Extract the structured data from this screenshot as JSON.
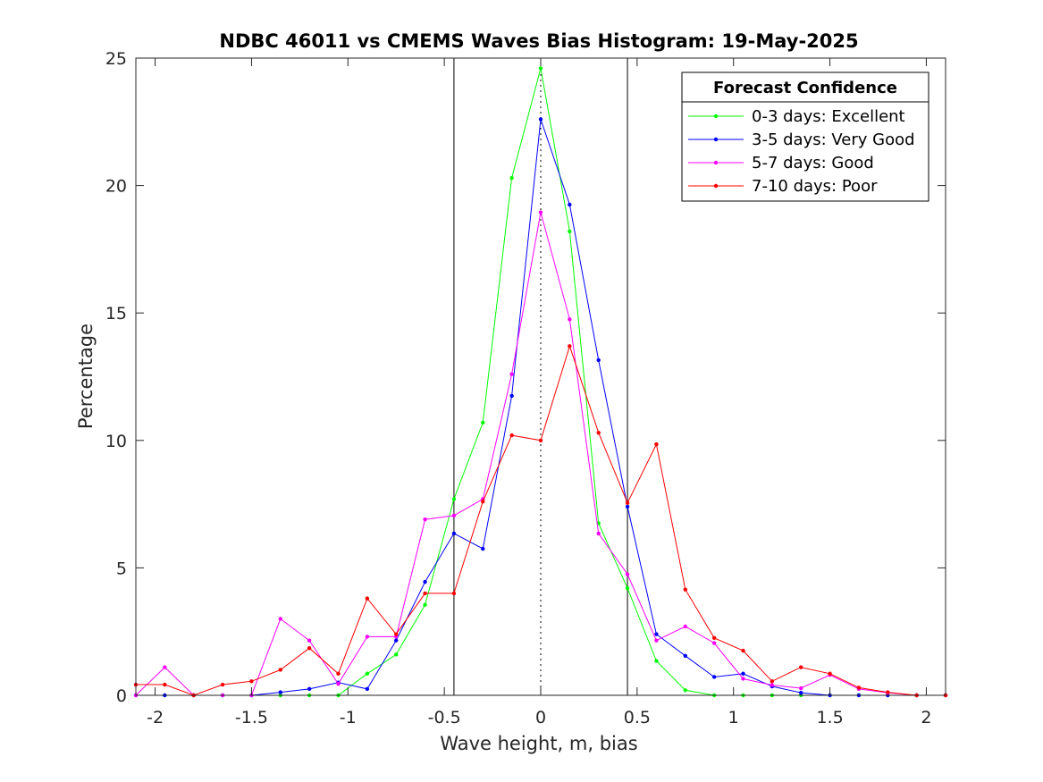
{
  "chart_data": {
    "type": "line",
    "title": "NDBC 46011 vs CMEMS Waves Bias Histogram: 19-May-2025",
    "xlabel": "Wave height, m, bias",
    "ylabel": "Percentage",
    "xlim": [
      -2.1,
      2.1
    ],
    "ylim": [
      0,
      25
    ],
    "xticks": [
      -2,
      -1.5,
      -1,
      -0.5,
      0,
      0.5,
      1,
      1.5,
      2
    ],
    "xtick_labels": [
      "-2",
      "-1.5",
      "-1",
      "-0.5",
      "0",
      "0.5",
      "1",
      "1.5",
      "2"
    ],
    "yticks": [
      0,
      5,
      10,
      15,
      20,
      25
    ],
    "ytick_labels": [
      "0",
      "5",
      "10",
      "15",
      "20",
      "25"
    ],
    "vertical_lines": [
      {
        "x": -0.45,
        "style": "solid",
        "color": "#000000"
      },
      {
        "x": 0,
        "style": "dotted",
        "color": "#000000"
      },
      {
        "x": 0.45,
        "style": "solid",
        "color": "#000000"
      }
    ],
    "legend": {
      "title": "Forecast Confidence",
      "position": "top-right"
    },
    "x": [
      -2.1,
      -1.95,
      -1.8,
      -1.65,
      -1.5,
      -1.35,
      -1.2,
      -1.05,
      -0.9,
      -0.75,
      -0.6,
      -0.45,
      -0.3,
      -0.15,
      0,
      0.15,
      0.3,
      0.45,
      0.6,
      0.75,
      0.9,
      1.05,
      1.2,
      1.35,
      1.5,
      1.65,
      1.8,
      1.95,
      2.1
    ],
    "series": [
      {
        "name": "0-3 days: Excellent",
        "color": "#00ff00",
        "values": [
          0,
          0,
          0,
          0,
          0,
          0,
          0,
          0,
          0.85,
          1.6,
          3.55,
          7.7,
          10.7,
          20.3,
          24.6,
          18.2,
          6.75,
          4.2,
          1.35,
          0.2,
          0,
          0,
          0,
          0,
          0,
          0,
          0,
          0,
          0
        ]
      },
      {
        "name": "3-5 days: Very Good",
        "color": "#0000ff",
        "values": [
          0,
          0,
          0,
          0,
          0,
          0.12,
          0.25,
          0.5,
          0.25,
          2.15,
          4.45,
          6.35,
          5.75,
          11.75,
          22.6,
          19.25,
          13.15,
          7.4,
          2.4,
          1.55,
          0.72,
          0.85,
          0.35,
          0.1,
          0,
          0,
          0,
          0,
          0
        ]
      },
      {
        "name": "5-7 days: Good",
        "color": "#ff00ff",
        "values": [
          0,
          1.1,
          0,
          0,
          0,
          3.0,
          2.15,
          0.45,
          2.3,
          2.3,
          6.9,
          7.05,
          7.7,
          12.6,
          18.95,
          14.75,
          6.35,
          4.75,
          2.15,
          2.7,
          2.05,
          0.65,
          0.4,
          0.28,
          0.8,
          0.25,
          0.1,
          0,
          0
        ]
      },
      {
        "name": "7-10 days: Poor",
        "color": "#ff0000",
        "values": [
          0.42,
          0.42,
          0,
          0.42,
          0.55,
          1.0,
          1.85,
          0.85,
          3.8,
          2.4,
          4.0,
          4.0,
          7.6,
          10.2,
          10.0,
          13.7,
          10.3,
          7.55,
          9.85,
          4.15,
          2.25,
          1.75,
          0.55,
          1.1,
          0.85,
          0.3,
          0.12,
          0,
          0
        ]
      }
    ]
  }
}
